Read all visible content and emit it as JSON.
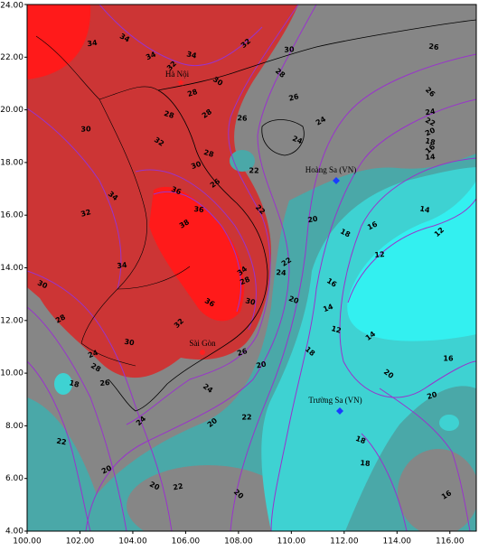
{
  "map": {
    "xlim": [
      100,
      117
    ],
    "ylim": [
      4,
      24
    ],
    "xticks": [
      {
        "value": 100,
        "label": "100.00"
      },
      {
        "value": 102,
        "label": "102.00"
      },
      {
        "value": 104,
        "label": "104.00"
      },
      {
        "value": 106,
        "label": "106.00"
      },
      {
        "value": 108,
        "label": "108.00"
      },
      {
        "value": 110,
        "label": "110.00"
      },
      {
        "value": 112,
        "label": "112.00"
      },
      {
        "value": 114,
        "label": "114.00"
      },
      {
        "value": 116,
        "label": "116.00"
      }
    ],
    "yticks": [
      {
        "value": 4,
        "label": "4.00"
      },
      {
        "value": 6,
        "label": "6.00"
      },
      {
        "value": 8,
        "label": "8.00"
      },
      {
        "value": 10,
        "label": "10.00"
      },
      {
        "value": 12,
        "label": "12.00"
      },
      {
        "value": 14,
        "label": "14.00"
      },
      {
        "value": 16,
        "label": "16.00"
      },
      {
        "value": 18,
        "label": "18.00"
      },
      {
        "value": 20,
        "label": "20.00"
      },
      {
        "value": 22,
        "label": "22.00"
      },
      {
        "value": 24,
        "label": "24.00"
      }
    ],
    "places": [
      "Hà Nội",
      "Hoàng Sa (VN)",
      "Trường Sa (VN)",
      "Sài Gòn"
    ],
    "contour_labels": [
      32,
      34,
      34,
      34,
      34,
      32,
      30,
      30,
      28,
      28,
      28,
      26,
      28,
      26,
      24,
      24,
      26,
      26,
      24,
      22,
      20,
      18,
      16,
      14,
      32,
      30,
      28,
      26,
      22,
      34,
      32,
      36,
      38,
      36,
      22,
      20,
      18,
      16,
      14,
      12,
      12,
      16,
      14,
      12,
      14,
      16,
      20,
      20,
      18,
      16,
      18,
      20,
      22,
      20,
      20,
      22,
      24,
      26,
      28,
      24,
      18,
      20,
      22,
      24,
      26,
      20,
      22,
      24,
      18,
      20,
      30,
      28,
      30,
      32,
      34,
      36,
      28,
      30,
      34,
      30
    ]
  }
}
